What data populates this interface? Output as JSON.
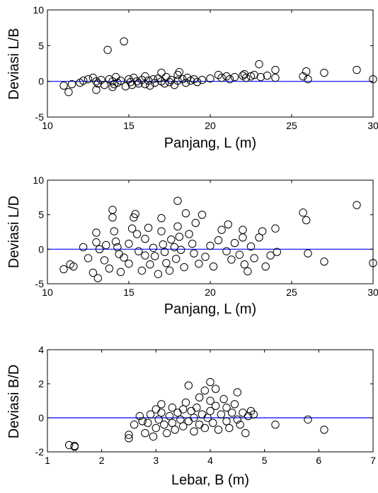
{
  "chart_data": [
    {
      "type": "scatter",
      "xlabel": "Panjang, L (m)",
      "ylabel": "Deviasi L/B",
      "xlim": [
        10,
        30
      ],
      "ylim": [
        -5,
        10
      ],
      "xticks": [
        "10",
        "15",
        "20",
        "25",
        "30"
      ],
      "yticks": [
        "10",
        "5",
        "0",
        "-5"
      ],
      "reference_line_y": 0,
      "reference_line_color": "#0000ff",
      "marker": "open-circle",
      "points": [
        [
          11.0,
          -0.6
        ],
        [
          11.3,
          -1.5
        ],
        [
          11.5,
          -0.4
        ],
        [
          12.0,
          -0.2
        ],
        [
          12.2,
          0.1
        ],
        [
          12.5,
          0.3
        ],
        [
          12.8,
          0.5
        ],
        [
          13.0,
          -1.2
        ],
        [
          13.0,
          0.0
        ],
        [
          13.1,
          -0.3
        ],
        [
          13.3,
          0.2
        ],
        [
          13.5,
          -0.5
        ],
        [
          13.7,
          4.4
        ],
        [
          13.8,
          0.3
        ],
        [
          14.0,
          -0.8
        ],
        [
          14.0,
          0.0
        ],
        [
          14.1,
          -0.4
        ],
        [
          14.2,
          0.6
        ],
        [
          14.3,
          -0.2
        ],
        [
          14.5,
          0.1
        ],
        [
          14.7,
          5.6
        ],
        [
          14.8,
          -0.7
        ],
        [
          15.0,
          0.3
        ],
        [
          15.1,
          -0.1
        ],
        [
          15.2,
          -0.5
        ],
        [
          15.3,
          0.5
        ],
        [
          15.5,
          0.0
        ],
        [
          15.6,
          -0.3
        ],
        [
          15.8,
          0.2
        ],
        [
          16.0,
          -0.4
        ],
        [
          16.0,
          0.7
        ],
        [
          16.2,
          0.1
        ],
        [
          16.3,
          -0.6
        ],
        [
          16.5,
          0.3
        ],
        [
          16.6,
          -0.2
        ],
        [
          16.8,
          0.4
        ],
        [
          17.0,
          0.0
        ],
        [
          17.0,
          1.2
        ],
        [
          17.2,
          -0.3
        ],
        [
          17.3,
          0.6
        ],
        [
          17.5,
          -0.1
        ],
        [
          17.6,
          0.2
        ],
        [
          17.8,
          -0.5
        ],
        [
          18.0,
          0.9
        ],
        [
          18.0,
          0.1
        ],
        [
          18.1,
          1.3
        ],
        [
          18.3,
          0.3
        ],
        [
          18.5,
          -0.2
        ],
        [
          18.6,
          0.5
        ],
        [
          18.8,
          0.1
        ],
        [
          19.0,
          0.3
        ],
        [
          19.2,
          -0.1
        ],
        [
          19.5,
          0.2
        ],
        [
          20.0,
          0.4
        ],
        [
          20.5,
          0.9
        ],
        [
          20.7,
          0.5
        ],
        [
          21.0,
          0.7
        ],
        [
          21.2,
          0.3
        ],
        [
          21.5,
          0.6
        ],
        [
          22.0,
          0.8
        ],
        [
          22.1,
          1.0
        ],
        [
          22.2,
          0.5
        ],
        [
          22.5,
          0.7
        ],
        [
          22.7,
          0.9
        ],
        [
          23.0,
          2.4
        ],
        [
          23.1,
          0.6
        ],
        [
          23.5,
          0.8
        ],
        [
          24.0,
          1.6
        ],
        [
          24.0,
          0.5
        ],
        [
          25.7,
          0.7
        ],
        [
          25.9,
          1.4
        ],
        [
          26.0,
          0.3
        ],
        [
          27.0,
          1.2
        ],
        [
          29.0,
          1.6
        ],
        [
          30.0,
          0.3
        ]
      ]
    },
    {
      "type": "scatter",
      "xlabel": "Panjang, L (m)",
      "ylabel": "Deviasi L/D",
      "xlim": [
        10,
        30
      ],
      "ylim": [
        -5,
        10
      ],
      "xticks": [
        "10",
        "15",
        "20",
        "25",
        "30"
      ],
      "yticks": [
        "10",
        "5",
        "0",
        "-5"
      ],
      "reference_line_y": 0,
      "reference_line_color": "#0000ff",
      "marker": "open-circle",
      "points": [
        [
          11.0,
          -2.9
        ],
        [
          11.4,
          -2.2
        ],
        [
          11.6,
          -2.5
        ],
        [
          12.2,
          0.3
        ],
        [
          12.5,
          -1.3
        ],
        [
          12.8,
          -3.4
        ],
        [
          13.0,
          2.4
        ],
        [
          13.0,
          1.0
        ],
        [
          13.1,
          -4.2
        ],
        [
          13.2,
          0.0
        ],
        [
          13.5,
          -1.6
        ],
        [
          13.6,
          0.6
        ],
        [
          13.8,
          -2.8
        ],
        [
          14.0,
          5.7
        ],
        [
          14.0,
          4.6
        ],
        [
          14.1,
          2.6
        ],
        [
          14.2,
          1.1
        ],
        [
          14.3,
          0.3
        ],
        [
          14.4,
          -0.7
        ],
        [
          14.5,
          -3.3
        ],
        [
          14.7,
          -1.2
        ],
        [
          15.0,
          -2.1
        ],
        [
          15.0,
          0.8
        ],
        [
          15.2,
          3.0
        ],
        [
          15.3,
          4.6
        ],
        [
          15.4,
          5.1
        ],
        [
          15.5,
          2.2
        ],
        [
          15.6,
          -0.3
        ],
        [
          15.8,
          -3.1
        ],
        [
          16.0,
          -0.9
        ],
        [
          16.0,
          1.5
        ],
        [
          16.2,
          3.1
        ],
        [
          16.3,
          -2.2
        ],
        [
          16.5,
          0.2
        ],
        [
          16.6,
          -1.0
        ],
        [
          16.8,
          -3.6
        ],
        [
          17.0,
          4.5
        ],
        [
          17.0,
          2.6
        ],
        [
          17.1,
          0.7
        ],
        [
          17.2,
          -0.4
        ],
        [
          17.3,
          -2.0
        ],
        [
          17.5,
          -3.1
        ],
        [
          17.6,
          1.4
        ],
        [
          17.8,
          0.3
        ],
        [
          17.9,
          -1.4
        ],
        [
          18.0,
          7.0
        ],
        [
          18.0,
          3.3
        ],
        [
          18.1,
          1.8
        ],
        [
          18.2,
          -0.1
        ],
        [
          18.4,
          -2.6
        ],
        [
          18.5,
          5.2
        ],
        [
          18.7,
          2.2
        ],
        [
          18.9,
          0.8
        ],
        [
          19.0,
          -0.6
        ],
        [
          19.1,
          3.8
        ],
        [
          19.3,
          -2.1
        ],
        [
          19.5,
          5.0
        ],
        [
          19.7,
          -1.1
        ],
        [
          20.0,
          0.5
        ],
        [
          20.2,
          -2.5
        ],
        [
          20.5,
          1.3
        ],
        [
          20.7,
          2.8
        ],
        [
          21.0,
          -0.3
        ],
        [
          21.1,
          3.6
        ],
        [
          21.3,
          -1.5
        ],
        [
          21.5,
          0.9
        ],
        [
          21.8,
          -0.8
        ],
        [
          22.0,
          1.7
        ],
        [
          22.0,
          2.8
        ],
        [
          22.1,
          -2.2
        ],
        [
          22.3,
          -3.2
        ],
        [
          22.5,
          0.4
        ],
        [
          22.7,
          -1.3
        ],
        [
          23.0,
          1.7
        ],
        [
          23.2,
          2.6
        ],
        [
          23.4,
          -2.5
        ],
        [
          23.7,
          -0.9
        ],
        [
          24.0,
          3.0
        ],
        [
          24.1,
          -0.4
        ],
        [
          25.7,
          5.3
        ],
        [
          25.9,
          4.2
        ],
        [
          26.0,
          -0.6
        ],
        [
          27.0,
          -1.8
        ],
        [
          29.0,
          6.4
        ],
        [
          30.0,
          -2.0
        ]
      ]
    },
    {
      "type": "scatter",
      "xlabel": "Lebar, B (m)",
      "ylabel": "Deviasi B/D",
      "xlim": [
        1,
        7
      ],
      "ylim": [
        -2,
        4
      ],
      "xticks": [
        "1",
        "2",
        "3",
        "4",
        "5",
        "6",
        "7"
      ],
      "yticks": [
        "4",
        "2",
        "0",
        "-2"
      ],
      "reference_line_y": 0,
      "reference_line_color": "#0000ff",
      "marker": "open-circle",
      "points": [
        [
          1.4,
          -1.6
        ],
        [
          1.5,
          -1.65
        ],
        [
          1.5,
          -1.7
        ],
        [
          2.5,
          -1.0
        ],
        [
          2.5,
          -1.2
        ],
        [
          2.6,
          -0.4
        ],
        [
          2.7,
          0.1
        ],
        [
          2.75,
          -0.2
        ],
        [
          2.8,
          -0.9
        ],
        [
          2.85,
          -0.3
        ],
        [
          2.9,
          0.2
        ],
        [
          2.95,
          -1.1
        ],
        [
          3.0,
          0.5
        ],
        [
          3.0,
          -0.6
        ],
        [
          3.05,
          -0.1
        ],
        [
          3.1,
          0.8
        ],
        [
          3.1,
          0.3
        ],
        [
          3.15,
          -0.4
        ],
        [
          3.2,
          -0.9
        ],
        [
          3.25,
          0.1
        ],
        [
          3.3,
          0.6
        ],
        [
          3.3,
          -0.3
        ],
        [
          3.35,
          -0.7
        ],
        [
          3.4,
          0.3
        ],
        [
          3.45,
          -0.1
        ],
        [
          3.5,
          0.5
        ],
        [
          3.5,
          -0.5
        ],
        [
          3.55,
          0.9
        ],
        [
          3.6,
          1.9
        ],
        [
          3.6,
          -0.2
        ],
        [
          3.65,
          0.4
        ],
        [
          3.7,
          -0.8
        ],
        [
          3.7,
          0.0
        ],
        [
          3.75,
          0.6
        ],
        [
          3.8,
          1.2
        ],
        [
          3.8,
          -0.4
        ],
        [
          3.85,
          0.2
        ],
        [
          3.9,
          1.6
        ],
        [
          3.9,
          -0.6
        ],
        [
          3.95,
          0.0
        ],
        [
          4.0,
          2.1
        ],
        [
          4.0,
          1.0
        ],
        [
          4.0,
          0.4
        ],
        [
          4.05,
          -0.3
        ],
        [
          4.1,
          1.7
        ],
        [
          4.1,
          0.7
        ],
        [
          4.15,
          -0.7
        ],
        [
          4.2,
          0.2
        ],
        [
          4.25,
          1.1
        ],
        [
          4.3,
          0.6
        ],
        [
          4.3,
          -0.2
        ],
        [
          4.35,
          -0.6
        ],
        [
          4.4,
          0.3
        ],
        [
          4.45,
          0.8
        ],
        [
          4.5,
          1.5
        ],
        [
          4.5,
          -0.1
        ],
        [
          4.55,
          -0.4
        ],
        [
          4.6,
          0.3
        ],
        [
          4.65,
          -0.9
        ],
        [
          4.7,
          0.1
        ],
        [
          4.75,
          0.4
        ],
        [
          4.8,
          0.2
        ],
        [
          5.2,
          -0.4
        ],
        [
          5.8,
          -0.1
        ],
        [
          6.1,
          -0.7
        ]
      ]
    }
  ]
}
